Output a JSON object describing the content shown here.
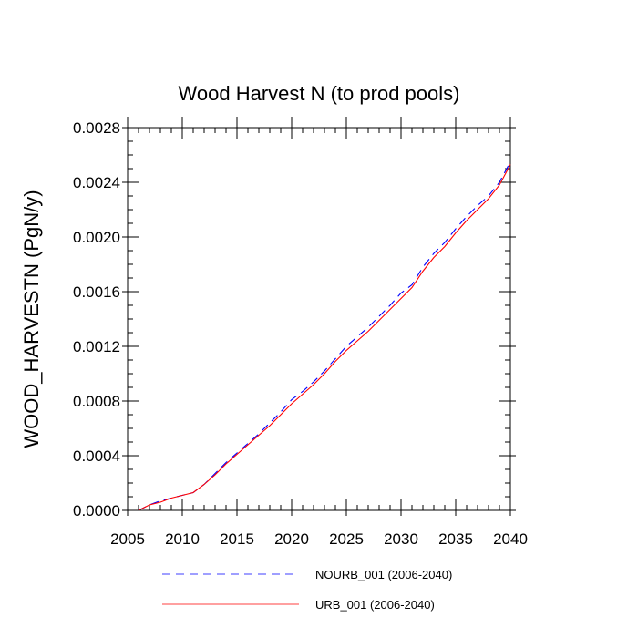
{
  "chart_data": {
    "type": "line",
    "title": "Wood Harvest N (to prod pools)",
    "xlabel": "",
    "ylabel": "WOOD_HARVESTN  (PgN/y)",
    "xlim": [
      2005,
      2040
    ],
    "ylim": [
      0,
      0.0028
    ],
    "x_ticks": [
      2005,
      2010,
      2015,
      2020,
      2025,
      2030,
      2035,
      2040
    ],
    "x_tick_labels": [
      "2005",
      "2010",
      "2015",
      "2020",
      "2025",
      "2030",
      "2035",
      "2040"
    ],
    "y_ticks": [
      0,
      0.0004,
      0.0008,
      0.0012,
      0.0016,
      0.002,
      0.0024,
      0.0028
    ],
    "y_tick_labels": [
      "0.0000",
      "0.0004",
      "0.0008",
      "0.0012",
      "0.0016",
      "0.0020",
      "0.0024",
      "0.0028"
    ],
    "grid": false,
    "legend_position": "bottom",
    "x": [
      2006,
      2007,
      2008,
      2009,
      2010,
      2011,
      2012,
      2013,
      2014,
      2015,
      2016,
      2017,
      2018,
      2019,
      2020,
      2021,
      2022,
      2023,
      2024,
      2025,
      2026,
      2027,
      2028,
      2029,
      2030,
      2031,
      2032,
      2033,
      2034,
      2035,
      2036,
      2037,
      2038,
      2039,
      2040
    ],
    "series": [
      {
        "name": "NOURB_001 (2006-2040)",
        "color": "#0000ff",
        "dash": "dashed",
        "values": [
          0.0,
          4e-05,
          7e-05,
          9e-05,
          0.00011,
          0.00013,
          0.00019,
          0.00027,
          0.00035,
          0.00042,
          0.00049,
          0.00056,
          0.00064,
          0.00072,
          0.00081,
          0.00087,
          0.00094,
          0.00102,
          0.00111,
          0.0012,
          0.00127,
          0.00134,
          0.00142,
          0.0015,
          0.00159,
          0.00165,
          0.00178,
          0.00188,
          0.00196,
          0.00206,
          0.00215,
          0.00223,
          0.0023,
          0.0024,
          0.00255
        ]
      },
      {
        "name": "URB_001 (2006-2040)",
        "color": "#ff0000",
        "dash": "solid",
        "values": [
          0.0,
          4e-05,
          6e-05,
          9e-05,
          0.00011,
          0.00013,
          0.00019,
          0.00026,
          0.00034,
          0.00041,
          0.00048,
          0.00055,
          0.00062,
          0.0007,
          0.00078,
          0.00085,
          0.00092,
          0.001,
          0.00109,
          0.00117,
          0.00124,
          0.00131,
          0.00139,
          0.00147,
          0.00155,
          0.00163,
          0.00175,
          0.00185,
          0.00193,
          0.00203,
          0.00212,
          0.0022,
          0.00228,
          0.00238,
          0.00253
        ]
      }
    ]
  }
}
